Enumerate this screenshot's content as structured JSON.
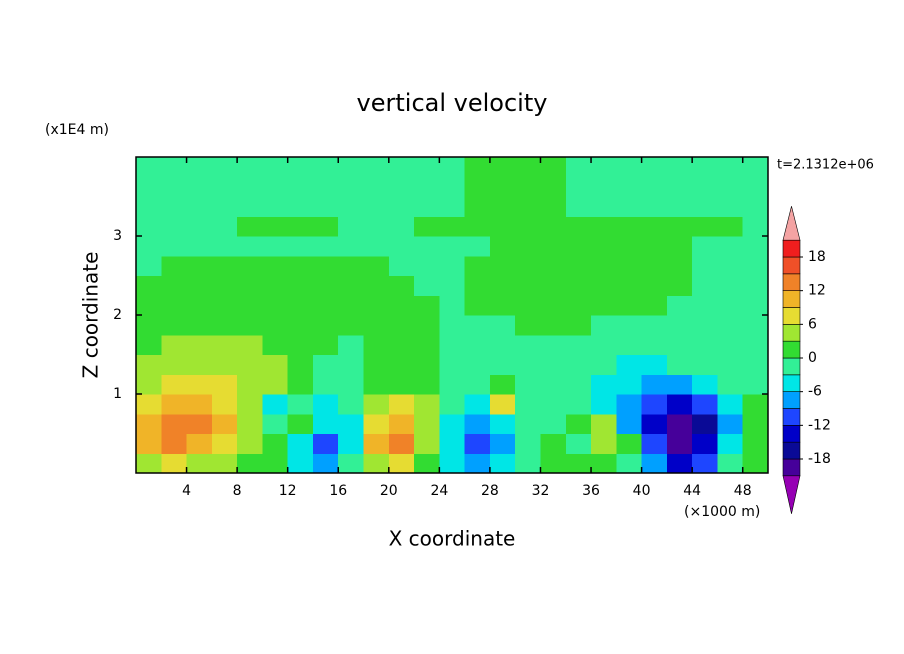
{
  "chart_data": {
    "type": "contour",
    "title": "vertical velocity",
    "xlabel": "X coordinate",
    "ylabel": "Z coordinate",
    "x_unit": "(×1000 m)",
    "y_unit": "(x1E4 m)",
    "annotation": "t=2.1312e+06",
    "xlim": [
      0,
      50
    ],
    "xticks": [
      4,
      8,
      12,
      16,
      20,
      24,
      28,
      32,
      36,
      40,
      44,
      48
    ],
    "ylim": [
      0,
      4
    ],
    "yticks": [
      1,
      2,
      3
    ],
    "x": [
      1,
      3,
      5,
      7,
      9,
      11,
      13,
      15,
      17,
      19,
      21,
      23,
      25,
      27,
      29,
      31,
      33,
      35,
      37,
      39,
      41,
      43,
      45,
      47,
      49
    ],
    "y": [
      0.125,
      0.375,
      0.625,
      0.875,
      1.125,
      1.375,
      1.625,
      1.875,
      2.125,
      2.375,
      2.625,
      2.875,
      3.125,
      3.375,
      3.625,
      3.875
    ],
    "z": [
      [
        4,
        7,
        4,
        4,
        1,
        1,
        -4,
        -7,
        -1,
        4,
        7,
        1,
        -4,
        -7,
        -4,
        -1,
        1,
        1,
        1,
        -1,
        -7,
        -13,
        -10,
        -1,
        1
      ],
      [
        10,
        13,
        10,
        7,
        4,
        1,
        -4,
        -10,
        -4,
        10,
        13,
        4,
        -4,
        -10,
        -7,
        -1,
        1,
        -1,
        4,
        1,
        -10,
        -19,
        -13,
        -4,
        1
      ],
      [
        10,
        13,
        13,
        10,
        4,
        -1,
        1,
        -4,
        -4,
        7,
        10,
        4,
        -4,
        -7,
        -4,
        -1,
        -1,
        1,
        4,
        -7,
        -13,
        -19,
        -16,
        -7,
        1
      ],
      [
        7,
        10,
        10,
        7,
        4,
        -4,
        -1,
        -4,
        -1,
        4,
        7,
        4,
        -1,
        -4,
        7,
        -1,
        -1,
        -1,
        -4,
        -7,
        -10,
        -13,
        -10,
        -4,
        1
      ],
      [
        4,
        7,
        7,
        7,
        4,
        4,
        1,
        -1,
        -1,
        1,
        1,
        1,
        -1,
        -1,
        1,
        -1,
        -1,
        -1,
        -4,
        -4,
        -7,
        -7,
        -4,
        -1,
        -1
      ],
      [
        4,
        4,
        4,
        4,
        4,
        4,
        1,
        -1,
        -1,
        1,
        1,
        1,
        -1,
        -1,
        -1,
        -1,
        -1,
        -1,
        -1,
        -4,
        -4,
        -1,
        -1,
        -1,
        -1
      ],
      [
        1,
        4,
        4,
        4,
        4,
        1,
        1,
        1,
        -1,
        1,
        1,
        1,
        -1,
        -1,
        -1,
        -1,
        -1,
        -1,
        -1,
        -1,
        -1,
        -1,
        -1,
        -1,
        -1
      ],
      [
        1,
        1,
        1,
        1,
        1,
        1,
        1,
        1,
        1,
        1,
        1,
        1,
        -1,
        -1,
        -1,
        1,
        1,
        1,
        -1,
        -1,
        -1,
        -1,
        -1,
        -1,
        -1
      ],
      [
        1,
        1,
        1,
        1,
        1,
        1,
        1,
        1,
        1,
        1,
        1,
        1,
        -1,
        1,
        1,
        1,
        1,
        1,
        1,
        1,
        1,
        -1,
        -1,
        -1,
        -1
      ],
      [
        1,
        1,
        1,
        1,
        1,
        1,
        1,
        1,
        1,
        1,
        1,
        -1,
        -1,
        1,
        1,
        1,
        1,
        1,
        1,
        1,
        1,
        1,
        -1,
        -1,
        -1
      ],
      [
        -1,
        1,
        1,
        1,
        1,
        1,
        1,
        1,
        1,
        1,
        -1,
        -1,
        -1,
        1,
        1,
        1,
        1,
        1,
        1,
        1,
        1,
        1,
        -1,
        -1,
        -1
      ],
      [
        -1,
        -1,
        -1,
        -1,
        -1,
        -1,
        -1,
        -1,
        -1,
        -1,
        -1,
        -1,
        -1,
        -1,
        1,
        1,
        1,
        1,
        1,
        1,
        1,
        1,
        -1,
        -1,
        -1
      ],
      [
        -1,
        -1,
        -1,
        -1,
        1,
        1,
        1,
        1,
        -1,
        -1,
        -1,
        1,
        1,
        1,
        1,
        1,
        1,
        1,
        1,
        1,
        1,
        1,
        1,
        1,
        -1
      ],
      [
        -1,
        -1,
        -1,
        -1,
        -1,
        -1,
        -1,
        -1,
        -1,
        -1,
        -1,
        -1,
        -1,
        1,
        1,
        1,
        1,
        -1,
        -1,
        -1,
        -1,
        -1,
        -1,
        -1,
        -1
      ],
      [
        -1,
        -1,
        -1,
        -1,
        -1,
        -1,
        -1,
        -1,
        -1,
        -1,
        -1,
        -1,
        -1,
        1,
        1,
        1,
        1,
        -1,
        -1,
        -1,
        -1,
        -1,
        -1,
        -1,
        -1
      ],
      [
        -1,
        -1,
        -1,
        -1,
        -1,
        -1,
        -1,
        -1,
        -1,
        -1,
        -1,
        -1,
        -1,
        1,
        1,
        1,
        1,
        -1,
        -1,
        -1,
        -1,
        -1,
        -1,
        -1,
        -1
      ]
    ],
    "levels": [
      -21,
      -18,
      -15,
      -12,
      -9,
      -6,
      -3,
      0,
      3,
      6,
      9,
      12,
      15,
      18,
      21
    ],
    "colors": [
      "#9600b4",
      "#46009a",
      "#0a0a96",
      "#0000c8",
      "#1e46ff",
      "#00a0ff",
      "#00e6e6",
      "#32f096",
      "#32dc32",
      "#a0e632",
      "#e6dc32",
      "#f0b428",
      "#f08228",
      "#f05028",
      "#f01e1e",
      "#f4a3a3"
    ],
    "colorbar_ticks": [
      -18,
      -12,
      -6,
      0,
      6,
      12,
      18
    ]
  }
}
